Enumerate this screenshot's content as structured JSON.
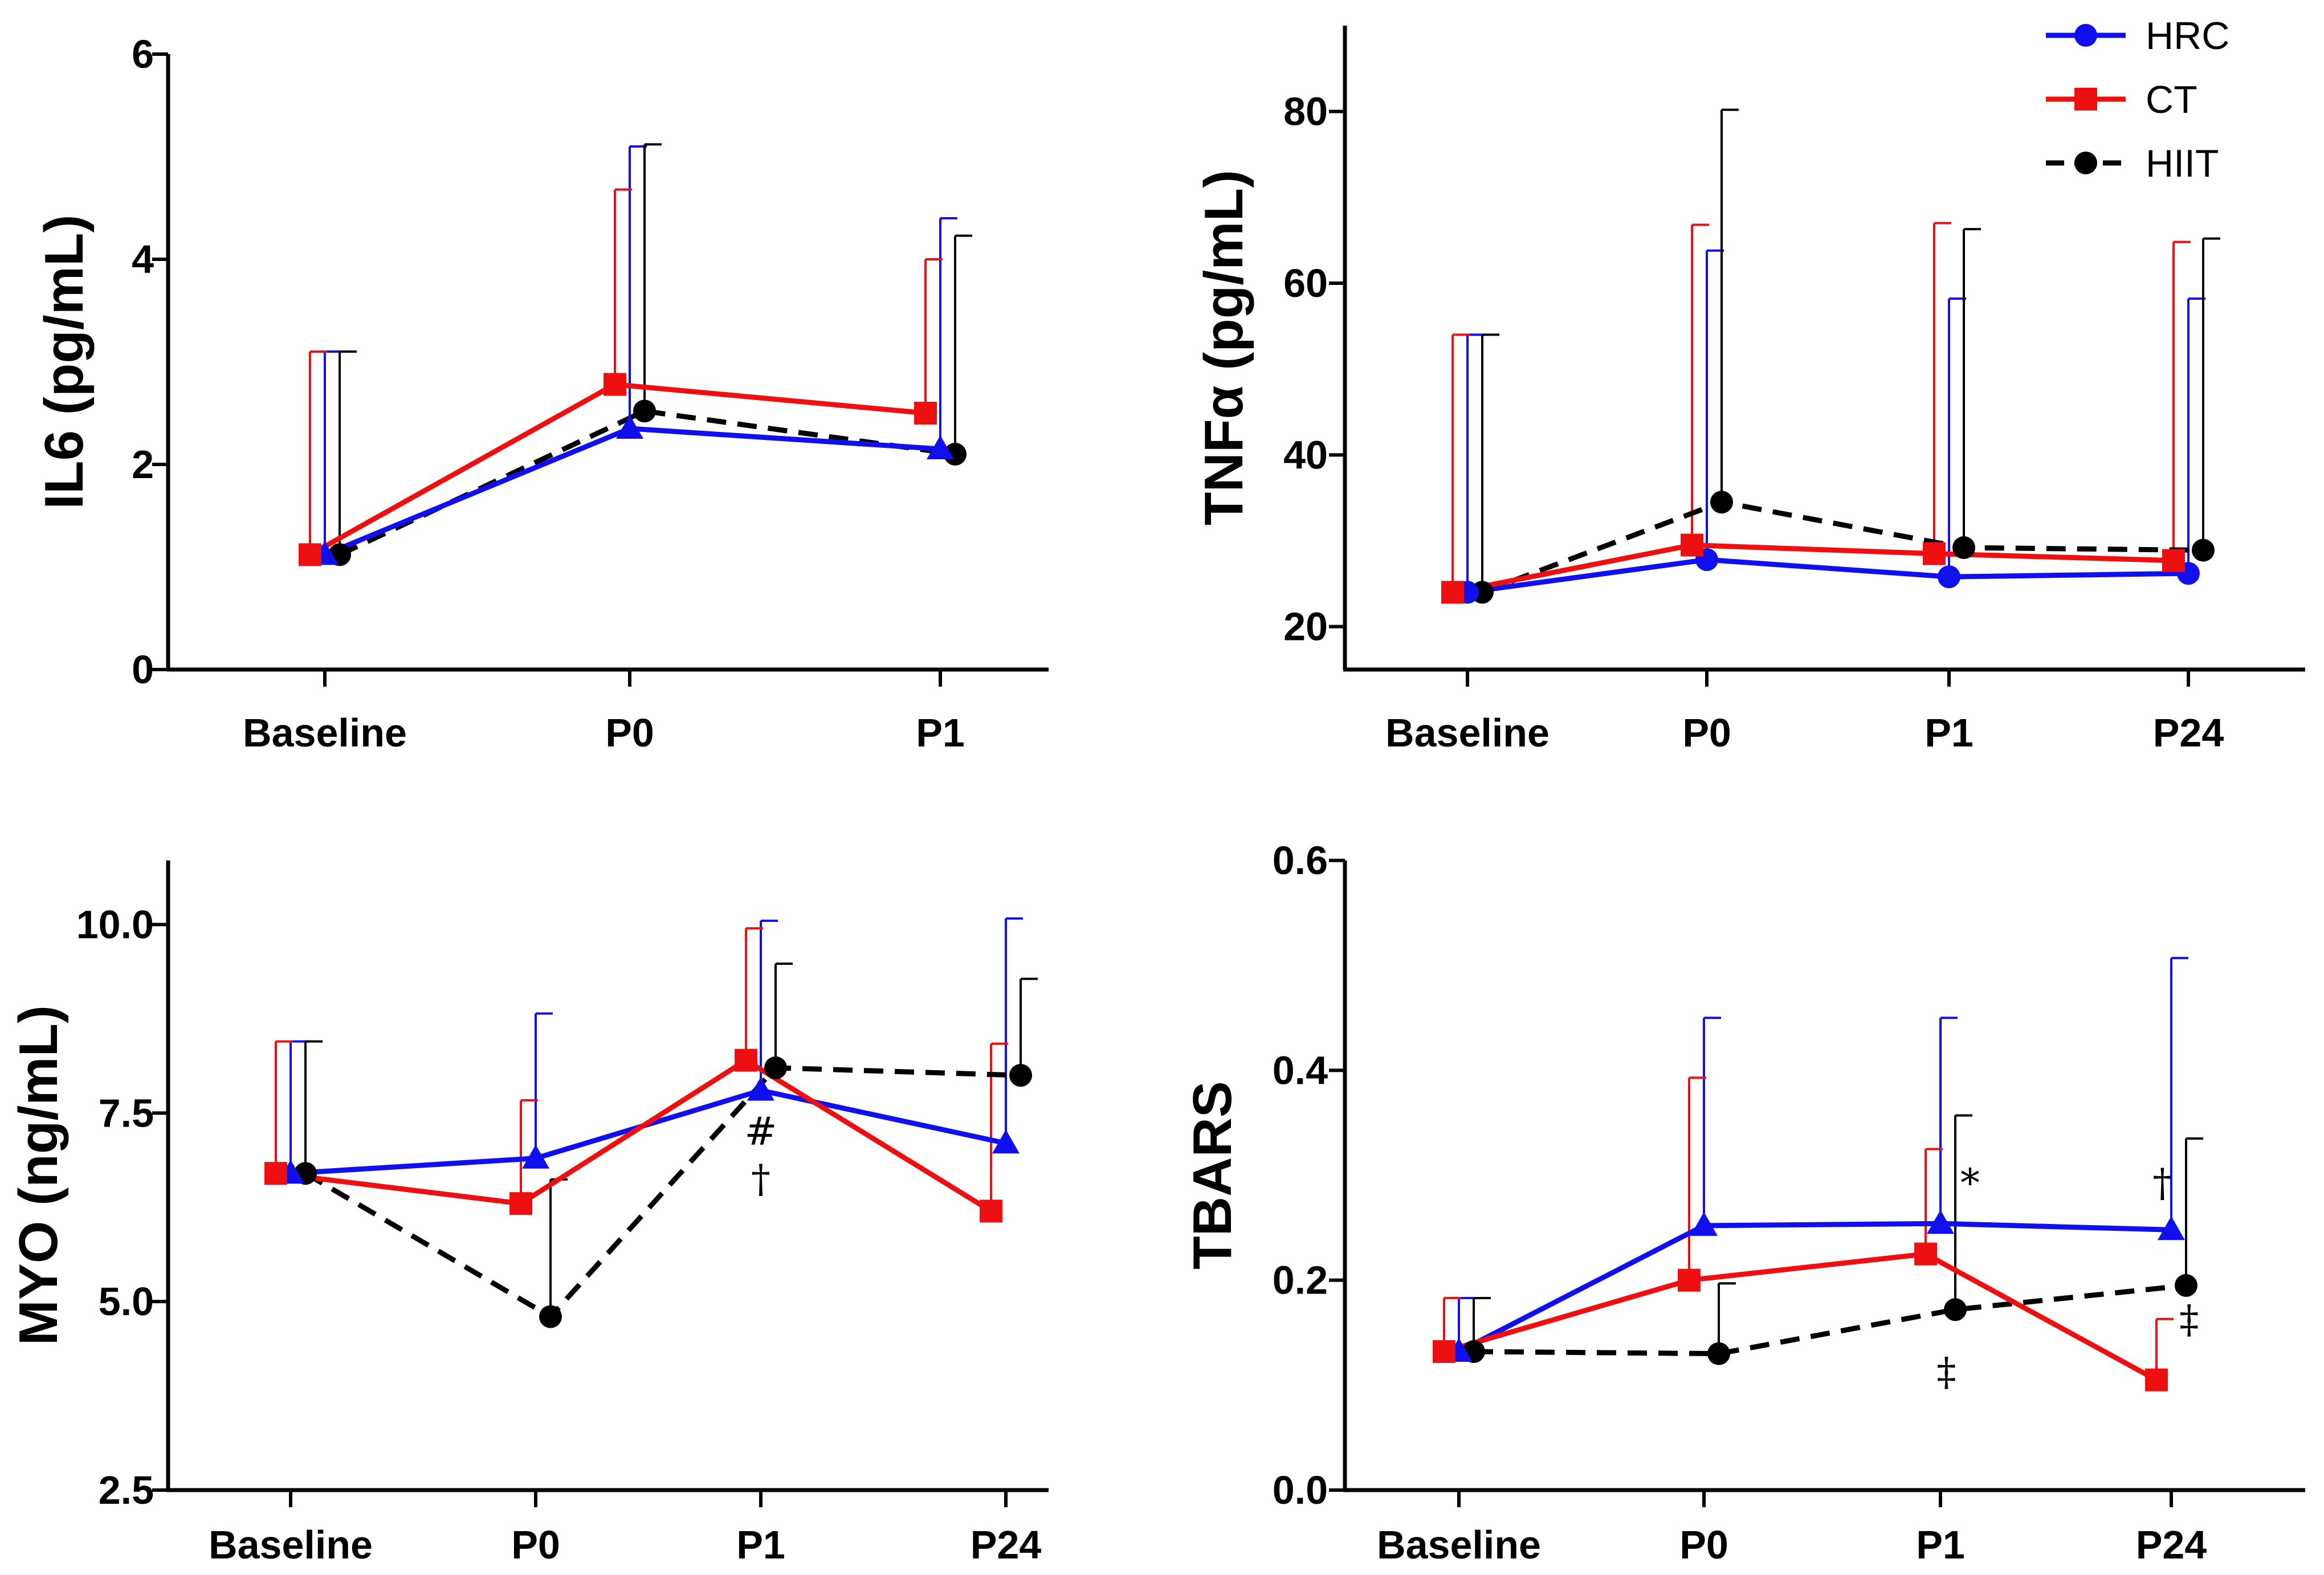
{
  "legend": [
    {
      "name": "HRC",
      "color": "#1010ee",
      "marker": "circle",
      "dash": false
    },
    {
      "name": "CT",
      "color": "#ee1010",
      "marker": "square",
      "dash": false
    },
    {
      "name": "HIIT",
      "color": "#000000",
      "marker": "circle",
      "dash": true
    }
  ],
  "chart_data": [
    {
      "type": "line",
      "id": "il6",
      "ylabel": "IL6 (pg/mL)",
      "categories": [
        "Baseline",
        "P0",
        "P1"
      ],
      "ylim": [
        0,
        6
      ],
      "yticks": [
        0,
        2,
        4,
        6
      ],
      "ytick_labels": [
        "0",
        "2",
        "4",
        "6"
      ],
      "series": [
        {
          "name": "HRC",
          "marker": "triangle",
          "values": [
            1.12,
            2.35,
            2.15
          ],
          "upper": [
            3.1,
            5.1,
            4.4
          ]
        },
        {
          "name": "CT",
          "marker": "square",
          "values": [
            1.12,
            2.78,
            2.5
          ],
          "upper": [
            3.1,
            4.68,
            4.0
          ]
        },
        {
          "name": "HIIT",
          "marker": "circle",
          "values": [
            1.12,
            2.52,
            2.1
          ],
          "upper": [
            3.1,
            5.12,
            4.23
          ]
        }
      ],
      "annotations": []
    },
    {
      "type": "line",
      "id": "tnf",
      "ylabel": "TNFα (pg/mL)",
      "categories": [
        "Baseline",
        "P0",
        "P1",
        "P24"
      ],
      "ylim": [
        15,
        90
      ],
      "yticks": [
        20,
        40,
        60,
        80
      ],
      "ytick_labels": [
        "20",
        "40",
        "60",
        "80"
      ],
      "series": [
        {
          "name": "HRC",
          "marker": "circle",
          "values": [
            24.0,
            27.8,
            25.8,
            26.2
          ],
          "upper": [
            54.0,
            63.8,
            58.2,
            58.2
          ]
        },
        {
          "name": "CT",
          "marker": "square",
          "values": [
            24.0,
            29.5,
            28.5,
            27.7
          ],
          "upper": [
            54.0,
            66.8,
            67.0,
            64.8
          ]
        },
        {
          "name": "HIIT",
          "marker": "circle",
          "values": [
            24.0,
            34.5,
            29.2,
            28.9
          ],
          "upper": [
            54.0,
            80.2,
            66.3,
            65.2
          ]
        }
      ],
      "annotations": []
    },
    {
      "type": "line",
      "id": "myo",
      "ylabel": "MYO (ng/mL)",
      "categories": [
        "Baseline",
        "P0",
        "P1",
        "P24"
      ],
      "ylim": [
        2.5,
        10.85
      ],
      "yticks": [
        2.5,
        5.0,
        7.5,
        10.0
      ],
      "ytick_labels": [
        "2.5",
        "5.0",
        "7.5",
        "10.0"
      ],
      "series": [
        {
          "name": "HRC",
          "marker": "triangle",
          "values": [
            6.7,
            6.9,
            7.8,
            7.1
          ],
          "upper": [
            8.45,
            8.82,
            10.05,
            10.08
          ]
        },
        {
          "name": "CT",
          "marker": "square",
          "values": [
            6.7,
            6.3,
            8.2,
            6.2
          ],
          "upper": [
            8.45,
            7.67,
            9.95,
            8.42
          ]
        },
        {
          "name": "HIIT",
          "marker": "circle",
          "values": [
            6.7,
            4.8,
            8.1,
            8.0
          ],
          "upper": [
            8.45,
            6.62,
            9.48,
            9.28
          ]
        }
      ],
      "annotations": [
        {
          "cat": 2,
          "offset": 0,
          "y": 7.08,
          "text": "#",
          "size": 52
        },
        {
          "cat": 2,
          "offset": 0,
          "y": 6.45,
          "text": "†",
          "size": 80
        }
      ]
    },
    {
      "type": "line",
      "id": "tbars",
      "ylabel": "TBARS",
      "categories": [
        "Baseline",
        "P0",
        "P1",
        "P24"
      ],
      "ylim": [
        0.0,
        0.6
      ],
      "yticks": [
        0.0,
        0.2,
        0.4,
        0.6
      ],
      "ytick_labels": [
        "0.0",
        "0.2",
        "0.4",
        "0.6"
      ],
      "series": [
        {
          "name": "HRC",
          "marker": "triangle",
          "values": [
            0.132,
            0.252,
            0.254,
            0.248
          ],
          "upper": [
            0.183,
            0.45,
            0.45,
            0.507
          ]
        },
        {
          "name": "CT",
          "marker": "square",
          "values": [
            0.132,
            0.2,
            0.225,
            0.105
          ],
          "upper": [
            0.183,
            0.393,
            0.325,
            0.163
          ]
        },
        {
          "name": "HIIT",
          "marker": "circle",
          "values": [
            0.132,
            0.13,
            0.172,
            0.195
          ],
          "upper": [
            0.183,
            0.197,
            0.357,
            0.335
          ]
        }
      ],
      "annotations": [
        {
          "cat": 2,
          "offset": 1.0,
          "y": 0.28,
          "text": "*",
          "size": 70
        },
        {
          "cat": 2,
          "offset": 0.2,
          "y": 0.1,
          "text": "‡",
          "size": 70
        },
        {
          "cat": 3,
          "offset": -0.3,
          "y": 0.28,
          "text": "†",
          "size": 70
        },
        {
          "cat": 3,
          "offset": 0.6,
          "y": 0.15,
          "text": "‡",
          "size": 70
        }
      ]
    }
  ]
}
